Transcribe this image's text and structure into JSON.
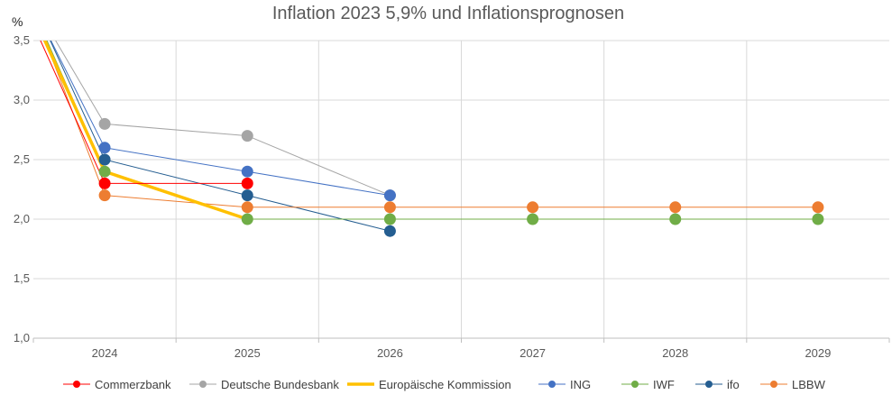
{
  "chart_data": {
    "type": "line",
    "title": "Inflation 2023 5,9% und Inflationsprognosen",
    "ylabel": "%",
    "xlabel": "",
    "ylim": [
      1.0,
      3.5
    ],
    "yticks": [
      "1,0",
      "1,5",
      "2,0",
      "2,5",
      "3,0",
      "3,5"
    ],
    "categories": [
      "2024",
      "2025",
      "2026",
      "2027",
      "2028",
      "2029"
    ],
    "grid": true,
    "legend": "bottom",
    "series": [
      {
        "name": "Commerzbank",
        "color": "#ff0000",
        "width": 1,
        "marker": true,
        "values": [
          2.3,
          2.3,
          null,
          null,
          null,
          null
        ]
      },
      {
        "name": "Deutsche Bundesbank",
        "color": "#a5a5a5",
        "width": 1,
        "marker": true,
        "values": [
          2.8,
          2.7,
          2.2,
          null,
          null,
          null
        ]
      },
      {
        "name": "Europäische Kommission",
        "color": "#ffc000",
        "width": 3.5,
        "marker": false,
        "values": [
          2.4,
          2.0,
          null,
          null,
          null,
          null
        ]
      },
      {
        "name": "ING",
        "color": "#4472c4",
        "width": 1,
        "marker": true,
        "values": [
          2.6,
          2.4,
          2.2,
          null,
          null,
          null
        ]
      },
      {
        "name": "IWF",
        "color": "#70ad47",
        "width": 1,
        "marker": true,
        "values": [
          2.4,
          2.0,
          2.0,
          2.0,
          2.0,
          2.0
        ]
      },
      {
        "name": "ifo",
        "color": "#255e91",
        "width": 1,
        "marker": true,
        "values": [
          2.5,
          2.2,
          1.9,
          null,
          null,
          null
        ]
      },
      {
        "name": "LBBW",
        "color": "#ed7d31",
        "width": 1,
        "marker": true,
        "values": [
          2.2,
          2.1,
          2.1,
          2.1,
          2.1,
          2.1
        ]
      }
    ]
  }
}
